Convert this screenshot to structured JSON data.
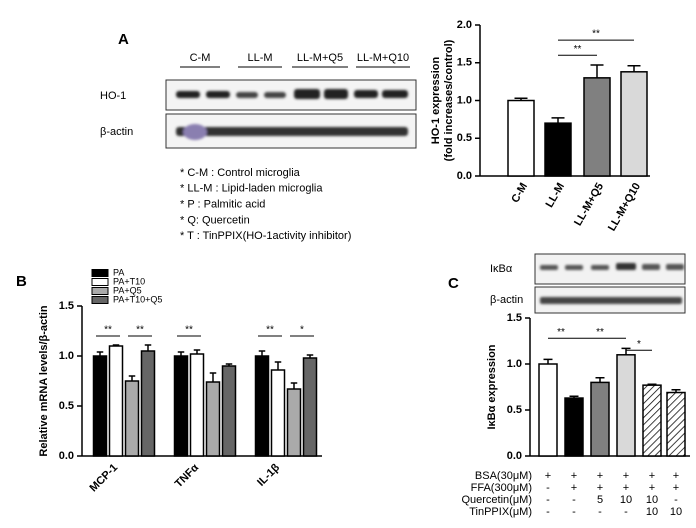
{
  "panel_labels": [
    "A",
    "B",
    "C"
  ],
  "blot_a": {
    "lanes": [
      "C-M",
      "LL-M",
      "LL-M+Q5",
      "LL-M+Q10"
    ],
    "rows": [
      "HO-1",
      "β-actin"
    ]
  },
  "notes": [
    "* C-M : Control  microglia",
    "* LL-M : Lipid-laden  microglia",
    "* P : Palmitic acid",
    "* Q: Quercetin",
    "* T : TinPPIX(HO-1activity  inhibitor)"
  ],
  "blot_c": {
    "rows": [
      "IκBα",
      "β-actin"
    ]
  },
  "treatment_table": {
    "rows": [
      {
        "label": "BSA(30μM)",
        "cells": [
          "+",
          "+",
          "+",
          "+",
          "+",
          "+"
        ]
      },
      {
        "label": "FFA(300μM)",
        "cells": [
          "-",
          "+",
          "+",
          "+",
          "+",
          "+"
        ]
      },
      {
        "label": "Quercetin(μM)",
        "cells": [
          "-",
          "-",
          "5",
          "10",
          "10",
          "-"
        ]
      },
      {
        "label": "TinPPIX(μM)",
        "cells": [
          "-",
          "-",
          "-",
          "-",
          "10",
          "10"
        ]
      }
    ]
  },
  "chart_data": [
    {
      "type": "bar",
      "ylabel": [
        "HO-1 expression",
        "(fold increases/control)"
      ],
      "categories": [
        "C-M",
        "LL-M",
        "LL-M+Q5",
        "LL-M+Q10"
      ],
      "values": [
        1.0,
        0.7,
        1.3,
        1.38
      ],
      "errors": [
        0.03,
        0.07,
        0.17,
        0.08
      ],
      "colors": [
        "#ffffff",
        "#000000",
        "#808080",
        "#d9d9d9"
      ],
      "ylim": [
        0,
        2
      ],
      "yticks": [
        {
          "value": 0,
          "label": "0.0"
        },
        0.5,
        {
          "value": 1,
          "label": "1.0"
        },
        1.5,
        {
          "value": 2,
          "label": "2.0"
        }
      ],
      "significance": [
        {
          "label": "**",
          "from": 1,
          "to": 2,
          "y": 1.6
        },
        {
          "label": "**",
          "from": 1,
          "to": 3,
          "y": 1.8
        }
      ]
    },
    {
      "type": "grouped_bar",
      "ylabel": "Relative mRNA levels/β-actin",
      "categories": [
        "MCP-1",
        "TNFα",
        "IL-1β"
      ],
      "series": [
        {
          "name": "PA",
          "color": "#000000",
          "values": [
            1.0,
            1.0,
            1.0
          ],
          "errors": [
            0.04,
            0.04,
            0.05
          ]
        },
        {
          "name": "PA+T10",
          "color": "#ffffff",
          "values": [
            1.1,
            1.02,
            0.86
          ],
          "errors": [
            0.01,
            0.04,
            0.08
          ]
        },
        {
          "name": "PA+Q5",
          "color": "#aaaaaa",
          "values": [
            0.75,
            0.74,
            0.67
          ],
          "errors": [
            0.05,
            0.09,
            0.06
          ]
        },
        {
          "name": "PA+T10+Q5",
          "color": "#666666",
          "values": [
            1.05,
            0.9,
            0.98
          ],
          "errors": [
            0.06,
            0.02,
            0.03
          ]
        }
      ],
      "ylim": [
        0,
        1.5
      ],
      "yticks": [
        {
          "value": 0,
          "label": "0.0"
        },
        0.5,
        {
          "value": 1,
          "label": "1.0"
        },
        1.5
      ],
      "significance": [
        {
          "label": "**",
          "category": 0,
          "from": 0,
          "to": 1,
          "y": 1.2
        },
        {
          "label": "**",
          "category": 0,
          "from": 2,
          "to": 3,
          "y": 1.2
        },
        {
          "label": "**",
          "category": 1,
          "from": 0,
          "to": 1,
          "y": 1.2
        },
        {
          "label": "**",
          "category": 2,
          "from": 0,
          "to": 1,
          "y": 1.2
        },
        {
          "label": "*",
          "category": 2,
          "from": 2,
          "to": 3,
          "y": 1.2
        }
      ]
    },
    {
      "type": "bar",
      "ylabel": "IκBα expression",
      "values": [
        1.0,
        0.63,
        0.8,
        1.1,
        0.77,
        0.69
      ],
      "errors": [
        0.05,
        0.02,
        0.05,
        0.07,
        0.01,
        0.03
      ],
      "colors": [
        "#ffffff",
        "#000000",
        "#808080",
        "#d9d9d9",
        "#ffffff",
        "#ffffff"
      ],
      "hatch": [
        false,
        false,
        false,
        false,
        true,
        true
      ],
      "ylim": [
        0,
        1.5
      ],
      "yticks": [
        {
          "value": 0,
          "label": "0.0"
        },
        0.5,
        {
          "value": 1,
          "label": "1.0"
        },
        1.5
      ],
      "significance": [
        {
          "label": "**",
          "from": 0,
          "to": 1,
          "y": 1.28
        },
        {
          "label": "**",
          "from": 1,
          "to": 3,
          "y": 1.28
        },
        {
          "label": "*",
          "from": 3,
          "to": 4,
          "y": 1.15
        }
      ]
    }
  ]
}
